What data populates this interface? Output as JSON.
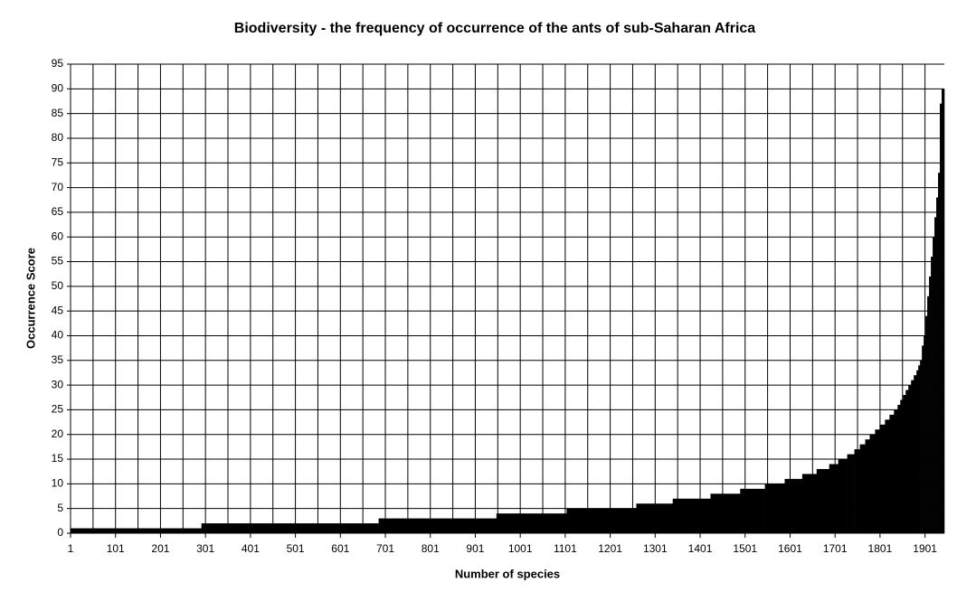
{
  "chart_data": {
    "type": "step-area",
    "title": "Biodiversity - the frequency of occurrence of the ants of sub-Saharan Africa",
    "x_label": "Number of species",
    "y_label": "Occurrence Score",
    "color": "#000000",
    "grid": true,
    "x": [
      1,
      292,
      686,
      948,
      1104,
      1259,
      1340,
      1424,
      1490,
      1545,
      1589,
      1628,
      1660,
      1688,
      1708,
      1728,
      1744,
      1756,
      1768,
      1778,
      1790,
      1800,
      1812,
      1822,
      1832,
      1840,
      1846,
      1852,
      1858,
      1864,
      1870,
      1876,
      1882,
      1886,
      1890,
      1894,
      1898,
      1902,
      1906,
      1910,
      1914,
      1918,
      1922,
      1926,
      1930,
      1934,
      1938
    ],
    "values": [
      1,
      2,
      3,
      4,
      5,
      6,
      7,
      8,
      9,
      10,
      11,
      12,
      13,
      14,
      15,
      16,
      17,
      18,
      19,
      20,
      21,
      22,
      23,
      24,
      25,
      26,
      27,
      28,
      29,
      30,
      31,
      32,
      33,
      34,
      35,
      38,
      40,
      44,
      48,
      52,
      56,
      60,
      64,
      68,
      73,
      87,
      90
    ],
    "xlim": [
      1,
      1944
    ],
    "xticks": [
      1,
      101,
      201,
      301,
      401,
      501,
      601,
      701,
      801,
      901,
      1001,
      1101,
      1201,
      1301,
      1401,
      1501,
      1601,
      1701,
      1801,
      1901
    ],
    "x_minor_ticks": [
      51,
      151,
      251,
      351,
      451,
      551,
      651,
      751,
      851,
      951,
      1051,
      1151,
      1251,
      1351,
      1451,
      1551,
      1651,
      1751,
      1851
    ],
    "ylim": [
      0,
      95
    ],
    "yticks": [
      0,
      5,
      10,
      15,
      20,
      25,
      30,
      35,
      40,
      45,
      50,
      55,
      60,
      65,
      70,
      75,
      80,
      85,
      90,
      95
    ]
  }
}
